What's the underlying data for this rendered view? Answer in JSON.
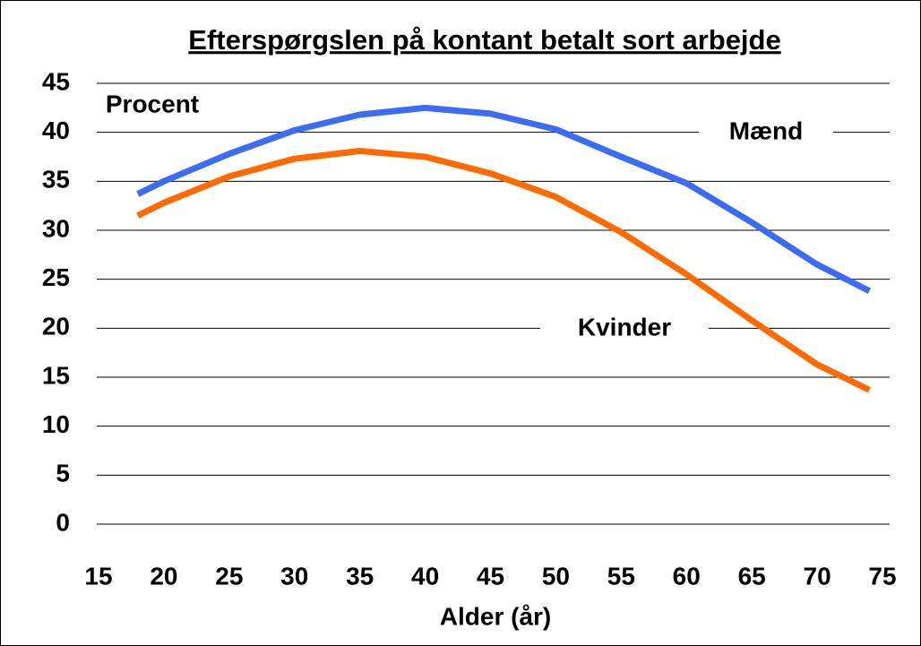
{
  "chart_data": {
    "type": "line",
    "title": "Efterspørgslen på kontant betalt sort arbejde",
    "ylabel": "Procent",
    "xlabel": "Alder (år)",
    "x": [
      18,
      20,
      25,
      30,
      35,
      40,
      45,
      50,
      55,
      60,
      65,
      70,
      74
    ],
    "series": [
      {
        "name": "Mænd",
        "color": "#3c6cf4",
        "values": [
          33.7,
          35,
          37.8,
          40.2,
          41.8,
          42.5,
          41.9,
          40.3,
          37.5,
          34.8,
          30.8,
          26.5,
          23.8
        ]
      },
      {
        "name": "Kvinder",
        "color": "#ff6a00",
        "values": [
          31.5,
          32.8,
          35.5,
          37.3,
          38.1,
          37.5,
          35.8,
          33.4,
          29.8,
          25.5,
          20.8,
          16.3,
          13.7
        ]
      }
    ],
    "xlim": [
      15,
      75
    ],
    "xticks": [
      15,
      20,
      25,
      30,
      35,
      40,
      45,
      50,
      55,
      60,
      65,
      70,
      75
    ],
    "ylim": [
      0,
      45
    ],
    "yticks": [
      0,
      5,
      10,
      15,
      20,
      25,
      30,
      35,
      40,
      45
    ],
    "grid": true
  }
}
